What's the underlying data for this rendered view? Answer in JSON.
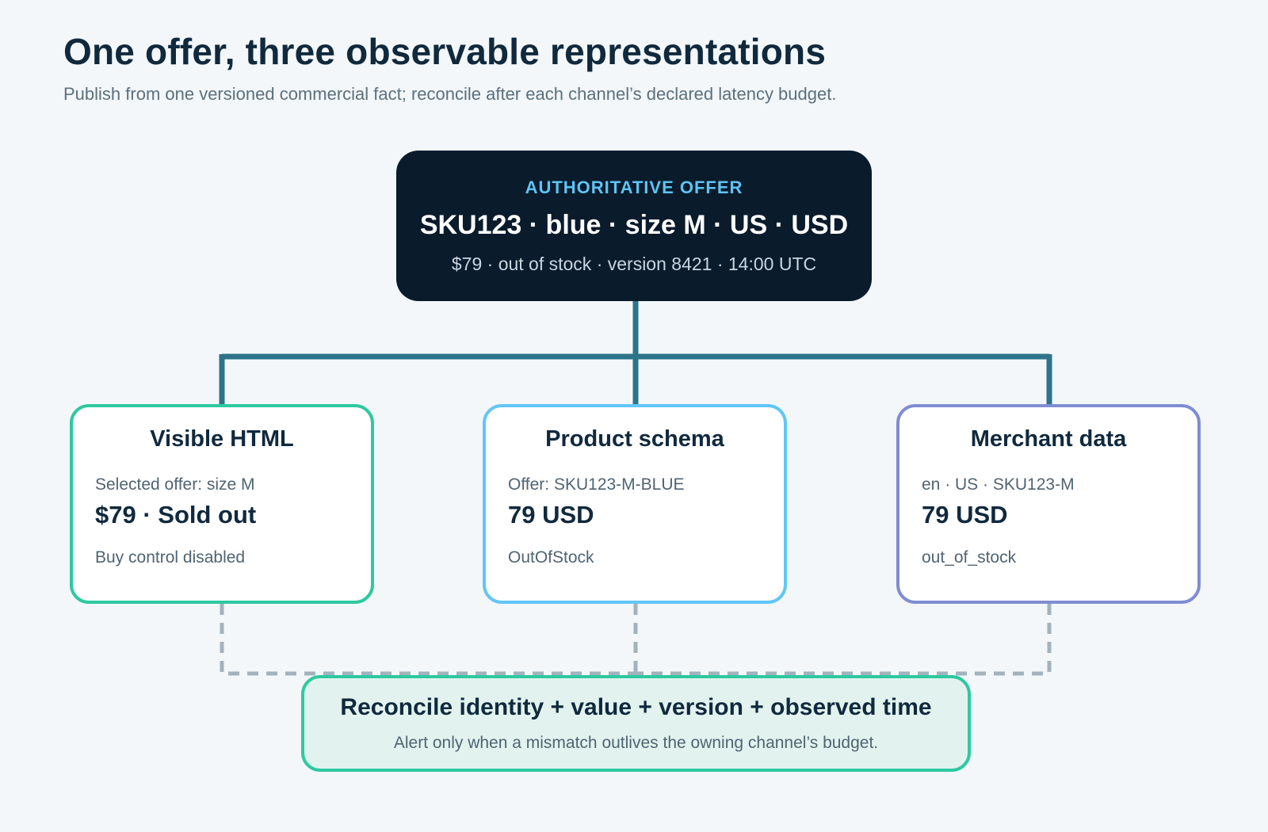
{
  "header": {
    "title": "One offer, three observable representations",
    "subtitle": "Publish from one versioned commercial fact; reconcile after each channel’s declared latency budget."
  },
  "authoritative_offer": {
    "tag": "AUTHORITATIVE OFFER",
    "main": "SKU123 · blue · size M · US · USD",
    "detail": "$79 · out of stock · version 8421 · 14:00 UTC"
  },
  "channels": [
    {
      "title": "Visible HTML",
      "label": "Selected offer: size M",
      "value": "$79 · Sold out",
      "status": "Buy control disabled",
      "color": "#2ec9a0"
    },
    {
      "title": "Product schema",
      "label": "Offer: SKU123-M-BLUE",
      "value": "79 USD",
      "status": "OutOfStock",
      "color": "#62c6f7"
    },
    {
      "title": "Merchant data",
      "label": "en · US · SKU123-M",
      "value": "79 USD",
      "status": "out_of_stock",
      "color": "#7f8dd1"
    }
  ],
  "reconcile": {
    "title": "Reconcile identity + value + version + observed time",
    "subtitle": "Alert only when a mismatch outlives the owning channel’s budget."
  },
  "colors": {
    "background": "#f3f7fa",
    "auth_box": "#0a1b2c",
    "connector": "#2d7489",
    "dashed_connector": "#a3b3bd",
    "reconcile_fill": "#e2f3ef"
  }
}
